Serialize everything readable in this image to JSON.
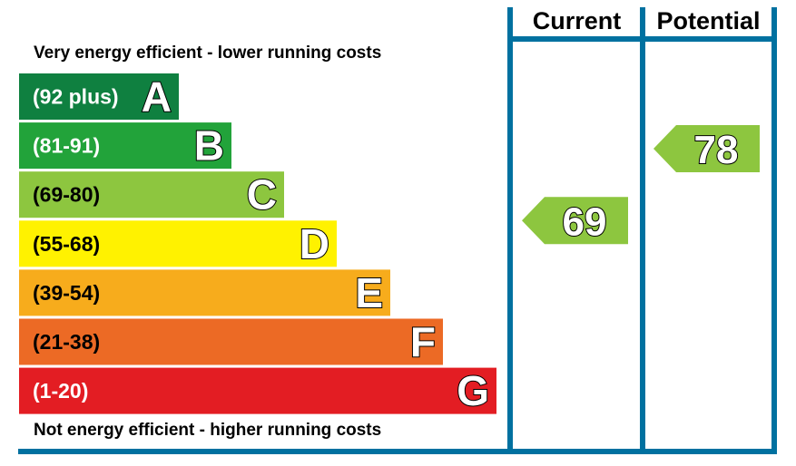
{
  "chart_data": {
    "type": "bar",
    "top_text": "Very energy efficient - lower running costs",
    "bottom_text": "Not energy efficient - higher running costs",
    "bands": [
      {
        "letter": "A",
        "range": "(92 plus)",
        "color": "#0f8040",
        "range_color": "#ffffff"
      },
      {
        "letter": "B",
        "range": "(81-91)",
        "color": "#22a33a",
        "range_color": "#ffffff"
      },
      {
        "letter": "C",
        "range": "(69-80)",
        "color": "#8dc63f",
        "range_color": "#000000"
      },
      {
        "letter": "D",
        "range": "(55-68)",
        "color": "#fff200",
        "range_color": "#000000"
      },
      {
        "letter": "E",
        "range": "(39-54)",
        "color": "#f7ac1c",
        "range_color": "#000000"
      },
      {
        "letter": "F",
        "range": "(21-38)",
        "color": "#ec6a25",
        "range_color": "#000000"
      },
      {
        "letter": "G",
        "range": "(1-20)",
        "color": "#e31d23",
        "range_color": "#ffffff"
      }
    ],
    "columns": [
      {
        "header": "Current",
        "value": 69,
        "band": "C",
        "color": "#8dc63f"
      },
      {
        "header": "Potential",
        "value": 78,
        "band": "C",
        "color": "#8dc63f"
      }
    ],
    "frame_color": "#0071a0"
  }
}
